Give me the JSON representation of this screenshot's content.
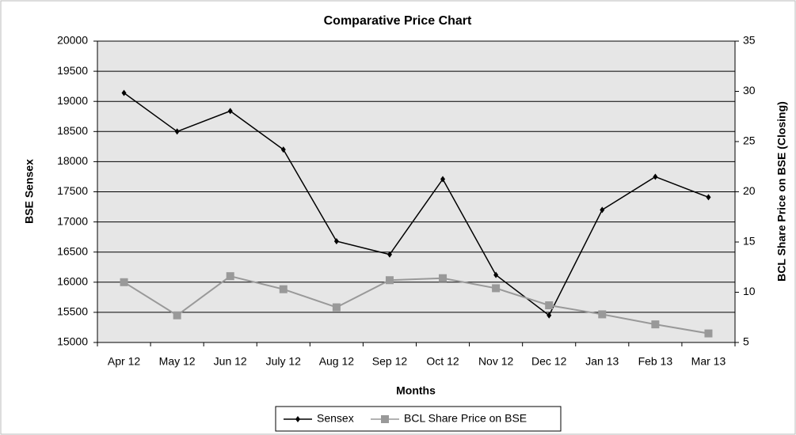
{
  "chart_data": {
    "type": "line",
    "title": "Comparative Price Chart",
    "x_label": "Months",
    "y_label": "BSE Sensex",
    "y2_label": "BCL Share Price on BSE (Closing)",
    "categories": [
      "Apr 12",
      "May 12",
      "Jun 12",
      "July 12",
      "Aug 12",
      "Sep 12",
      "Oct 12",
      "Nov 12",
      "Dec 12",
      "Jan 13",
      "Feb 13",
      "Mar 13"
    ],
    "series": [
      {
        "name": "Sensex",
        "color": "#000000",
        "marker": "diamond",
        "values": [
          19140,
          18500,
          18840,
          18200,
          16680,
          16460,
          17710,
          16120,
          15450,
          17200,
          17750,
          17410
        ]
      },
      {
        "name": "BCL Share Price on BSE",
        "color": "#999999",
        "marker": "square",
        "axis": "y2",
        "values": [
          11.0,
          7.7,
          11.6,
          10.3,
          8.5,
          11.2,
          11.4,
          10.4,
          8.7,
          7.8,
          6.8,
          5.9
        ]
      }
    ],
    "ylim": [
      15000,
      20000
    ],
    "yticks": [
      15000,
      15500,
      16000,
      16500,
      17000,
      17500,
      18000,
      18500,
      19000,
      19500,
      20000
    ],
    "y2lim": [
      5,
      35
    ],
    "y2ticks": [
      5,
      10,
      15,
      20,
      25,
      30,
      35
    ],
    "grid": true,
    "legend": "bottom"
  }
}
